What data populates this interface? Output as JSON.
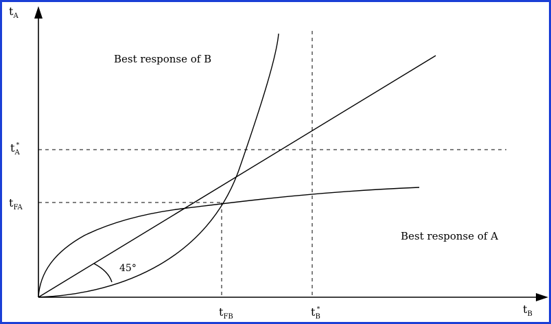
{
  "diagram": {
    "axes": {
      "y_axis": {
        "symbol": "t",
        "subscript": "A"
      },
      "x_axis": {
        "symbol": "t",
        "subscript": "B"
      }
    },
    "y_ticks": [
      {
        "symbol": "t",
        "subscript": "A",
        "superscript": "*"
      },
      {
        "symbol": "t",
        "subscript": "FA"
      }
    ],
    "x_ticks": [
      {
        "symbol": "t",
        "subscript": "FB"
      },
      {
        "symbol": "t",
        "subscript": "B",
        "superscript": "*"
      }
    ],
    "curve_labels": {
      "best_response_b": "Best response of B",
      "best_response_a": "Best response of A"
    },
    "angle_label": "45°",
    "colors": {
      "border": "#1b3fd6",
      "lines": "#000000"
    }
  }
}
